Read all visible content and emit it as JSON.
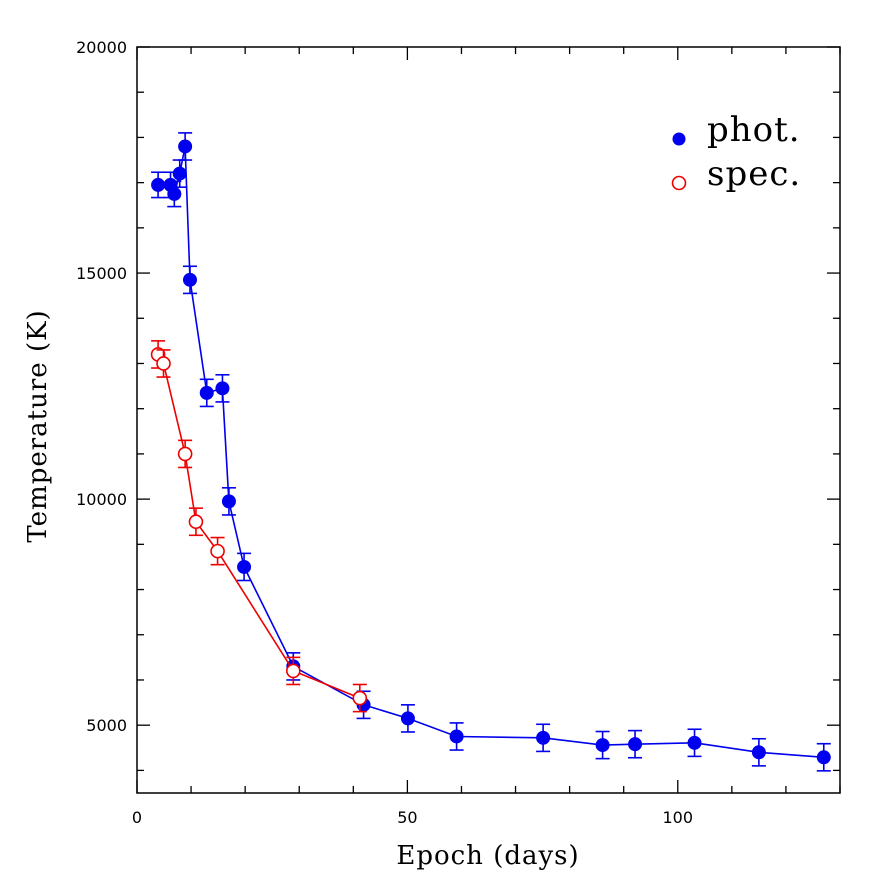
{
  "chart_data": {
    "type": "scatter",
    "xlabel": "Epoch (days)",
    "ylabel": "Temperature (K)",
    "xlim": [
      0,
      130
    ],
    "ylim": [
      3500,
      20000
    ],
    "x_ticks": [
      0,
      50,
      100
    ],
    "x_tick_labels": [
      "0",
      "50",
      "100"
    ],
    "y_ticks": [
      5000,
      10000,
      15000,
      20000
    ],
    "y_tick_labels": [
      "5000",
      "10000",
      "15000",
      "20000"
    ],
    "x_minor_step": 10,
    "y_minor_step": 1000,
    "legend_position": "top-right",
    "series": [
      {
        "name": "phot.",
        "color": "#0000ee",
        "marker": "filled-circle",
        "points": [
          {
            "x": 3.9,
            "y": 16950,
            "err": 280
          },
          {
            "x": 6.2,
            "y": 16950,
            "err": 280
          },
          {
            "x": 6.9,
            "y": 16750,
            "err": 280
          },
          {
            "x": 7.9,
            "y": 17200,
            "err": 300
          },
          {
            "x": 8.9,
            "y": 17800,
            "err": 300
          },
          {
            "x": 9.8,
            "y": 14850,
            "err": 300
          },
          {
            "x": 12.9,
            "y": 12350,
            "err": 300
          },
          {
            "x": 15.8,
            "y": 12450,
            "err": 300
          },
          {
            "x": 17.0,
            "y": 9950,
            "err": 300
          },
          {
            "x": 19.8,
            "y": 8500,
            "err": 300
          },
          {
            "x": 28.9,
            "y": 6300,
            "err": 300
          },
          {
            "x": 41.9,
            "y": 5450,
            "err": 300
          },
          {
            "x": 50.1,
            "y": 5150,
            "err": 300
          },
          {
            "x": 59.1,
            "y": 4750,
            "err": 300
          },
          {
            "x": 75.1,
            "y": 4720,
            "err": 300
          },
          {
            "x": 86.1,
            "y": 4560,
            "err": 300
          },
          {
            "x": 92.1,
            "y": 4580,
            "err": 300
          },
          {
            "x": 103.1,
            "y": 4610,
            "err": 300
          },
          {
            "x": 115.0,
            "y": 4400,
            "err": 300
          },
          {
            "x": 127.0,
            "y": 4290,
            "err": 300
          }
        ]
      },
      {
        "name": "spec.",
        "color": "#ee0000",
        "marker": "open-circle",
        "points": [
          {
            "x": 3.9,
            "y": 13200,
            "err": 300
          },
          {
            "x": 4.9,
            "y": 13000,
            "err": 300
          },
          {
            "x": 8.9,
            "y": 11000,
            "err": 300
          },
          {
            "x": 10.9,
            "y": 9500,
            "err": 300
          },
          {
            "x": 14.9,
            "y": 8850,
            "err": 300
          },
          {
            "x": 28.9,
            "y": 6200,
            "err": 300
          },
          {
            "x": 41.2,
            "y": 5600,
            "err": 300
          }
        ]
      }
    ]
  }
}
